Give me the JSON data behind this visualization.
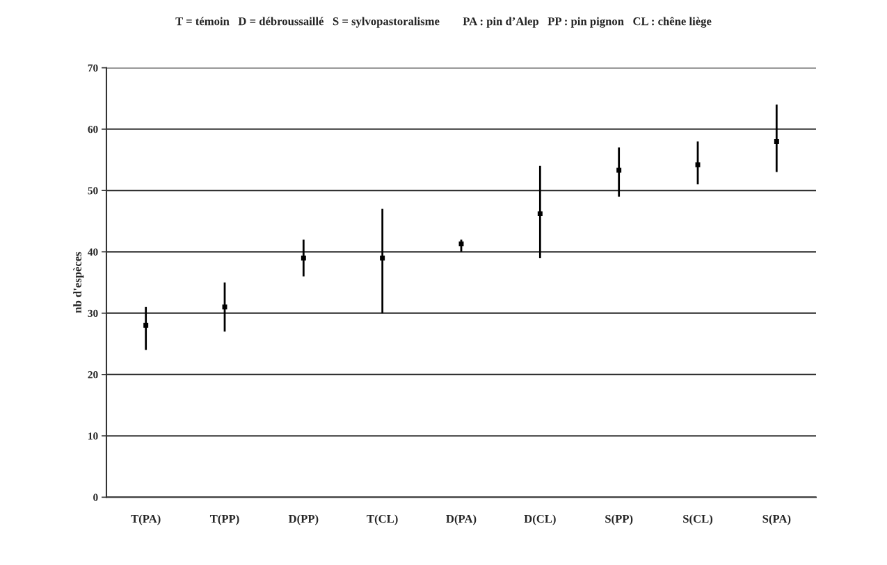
{
  "chart_data": {
    "type": "scatter",
    "title": "T = témoin   D = débroussaillé   S = sylvopastoralisme        PA : pin d’Alep   PP : pin pignon   CL : chêne liège",
    "ylabel": "nb d'espèces",
    "categories": [
      "T(PA)",
      "T(PP)",
      "D(PP)",
      "T(CL)",
      "D(PA)",
      "D(CL)",
      "S(PP)",
      "S(CL)",
      "S(PA)"
    ],
    "series": [
      {
        "color": "#000000",
        "values": [
          28,
          31,
          39,
          39,
          41.3,
          46.2,
          53.3,
          54.2,
          58
        ],
        "errors": [
          [
            24,
            31
          ],
          [
            27,
            35
          ],
          [
            36,
            42
          ],
          [
            30,
            47
          ],
          [
            40,
            42
          ],
          [
            39,
            54
          ],
          [
            49,
            57
          ],
          [
            51,
            58
          ],
          [
            53,
            64
          ]
        ]
      }
    ],
    "ylim": [
      0,
      70
    ],
    "yticks": [
      0,
      10,
      20,
      30,
      40,
      50,
      60,
      70
    ],
    "grid": "y",
    "legend": false,
    "marker": "square"
  }
}
